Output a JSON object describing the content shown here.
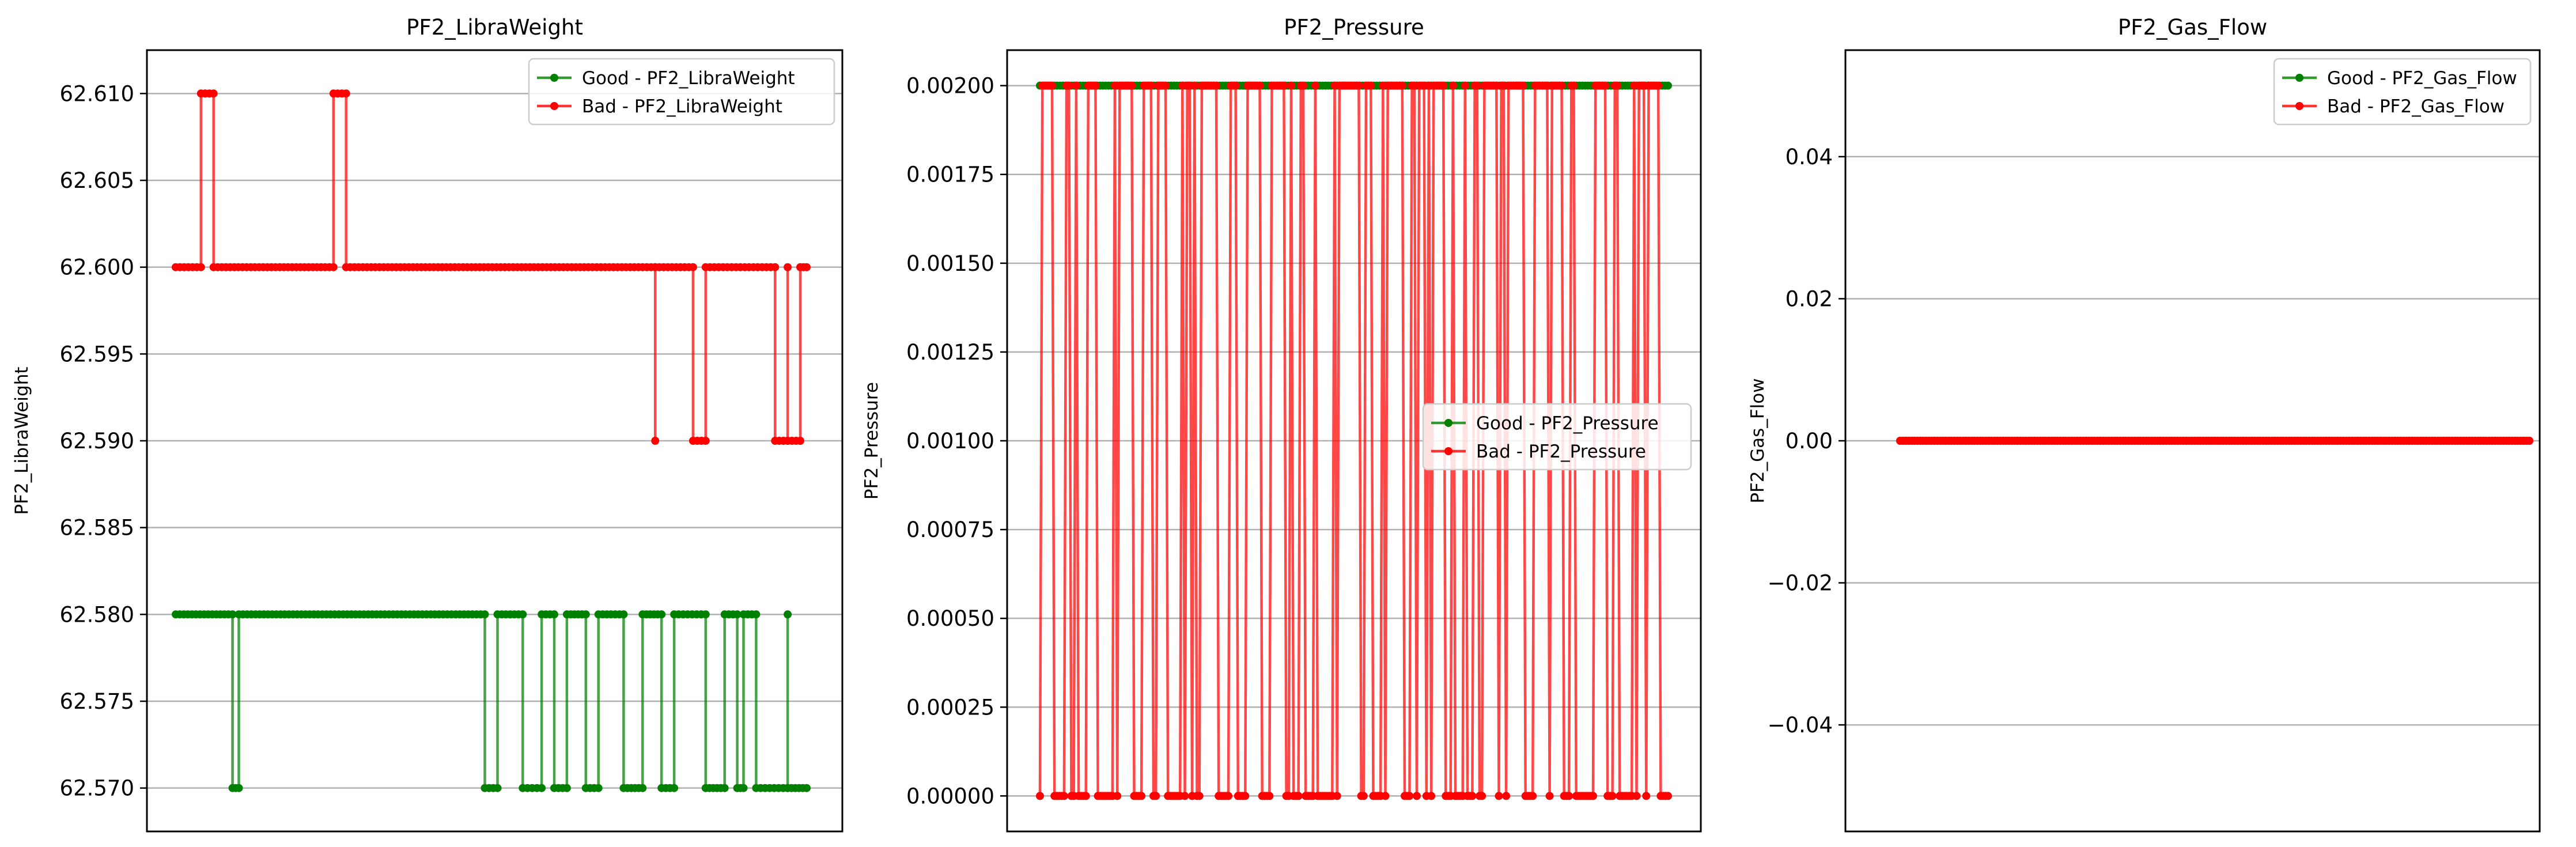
{
  "colors": {
    "good": "#008000",
    "bad": "#ff0000",
    "grid": "#b0b0b0",
    "axes": "#000000",
    "background": "#ffffff"
  },
  "chart_data": [
    {
      "type": "line",
      "title": "PF2_LibraWeight",
      "xlabel": "",
      "ylabel": "PF2_LibraWeight",
      "ylim": [
        62.5675,
        62.6125
      ],
      "y_ticks": [
        "62.570",
        "62.575",
        "62.580",
        "62.585",
        "62.590",
        "62.595",
        "62.600",
        "62.605",
        "62.610"
      ],
      "y_tick_values": [
        62.57,
        62.575,
        62.58,
        62.585,
        62.59,
        62.595,
        62.6,
        62.605,
        62.61
      ],
      "x_ticks_visible": false,
      "grid": "y",
      "legend_position": "top-right",
      "series": [
        {
          "name": "Good - PF2_LibraWeight",
          "color": "good",
          "segments": [
            [
              0.0,
              62.58
            ],
            [
              0.09,
              62.58
            ],
            [
              0.09,
              62.57
            ],
            [
              0.1,
              62.57
            ],
            [
              0.1,
              62.58
            ],
            [
              0.49,
              62.58
            ],
            [
              0.49,
              62.57
            ],
            [
              0.51,
              62.57
            ],
            [
              0.51,
              62.58
            ],
            [
              0.55,
              62.58
            ],
            [
              0.55,
              62.57
            ],
            [
              0.58,
              62.57
            ],
            [
              0.58,
              62.58
            ],
            [
              0.6,
              62.58
            ],
            [
              0.6,
              62.57
            ],
            [
              0.62,
              62.57
            ],
            [
              0.62,
              62.58
            ],
            [
              0.65,
              62.58
            ],
            [
              0.65,
              62.57
            ],
            [
              0.67,
              62.57
            ],
            [
              0.67,
              62.58
            ],
            [
              0.71,
              62.58
            ],
            [
              0.71,
              62.57
            ],
            [
              0.74,
              62.57
            ],
            [
              0.74,
              62.58
            ],
            [
              0.77,
              62.58
            ],
            [
              0.77,
              62.57
            ],
            [
              0.79,
              62.57
            ],
            [
              0.79,
              62.58
            ],
            [
              0.84,
              62.58
            ],
            [
              0.84,
              62.57
            ],
            [
              0.87,
              62.57
            ],
            [
              0.87,
              62.58
            ],
            [
              0.89,
              62.58
            ],
            [
              0.89,
              62.57
            ],
            [
              0.9,
              62.57
            ],
            [
              0.9,
              62.58
            ],
            [
              0.92,
              62.58
            ],
            [
              0.92,
              62.57
            ],
            [
              0.97,
              62.57
            ],
            [
              0.97,
              62.58
            ],
            [
              0.97,
              62.57
            ],
            [
              1.0,
              62.57
            ]
          ]
        },
        {
          "name": "Bad - PF2_LibraWeight",
          "color": "bad",
          "segments": [
            [
              0.0,
              62.6
            ],
            [
              0.04,
              62.6
            ],
            [
              0.04,
              62.61
            ],
            [
              0.06,
              62.61
            ],
            [
              0.06,
              62.6
            ],
            [
              0.25,
              62.6
            ],
            [
              0.25,
              62.61
            ],
            [
              0.27,
              62.61
            ],
            [
              0.27,
              62.6
            ],
            [
              0.76,
              62.6
            ],
            [
              0.76,
              62.59
            ],
            [
              0.76,
              62.6
            ],
            [
              0.82,
              62.6
            ],
            [
              0.82,
              62.59
            ],
            [
              0.84,
              62.59
            ],
            [
              0.84,
              62.6
            ],
            [
              0.95,
              62.6
            ],
            [
              0.95,
              62.59
            ],
            [
              0.97,
              62.59
            ],
            [
              0.97,
              62.6
            ],
            [
              0.97,
              62.59
            ],
            [
              0.99,
              62.59
            ],
            [
              0.99,
              62.6
            ],
            [
              1.0,
              62.6
            ]
          ]
        }
      ]
    },
    {
      "type": "line",
      "title": "PF2_Pressure",
      "xlabel": "",
      "ylabel": "PF2_Pressure",
      "ylim": [
        -0.0001,
        0.0021
      ],
      "y_ticks": [
        "0.00000",
        "0.00025",
        "0.00050",
        "0.00075",
        "0.00100",
        "0.00125",
        "0.00150",
        "0.00175",
        "0.00200"
      ],
      "y_tick_values": [
        0.0,
        0.00025,
        0.0005,
        0.00075,
        0.001,
        0.00125,
        0.0015,
        0.00175,
        0.002
      ],
      "x_ticks_visible": false,
      "grid": "y",
      "legend_position": "center-right",
      "series": [
        {
          "name": "Good - PF2_Pressure",
          "color": "good",
          "constant": 0.002
        },
        {
          "name": "Bad - PF2_Pressure",
          "color": "bad",
          "pattern": "alternating between 0.0 and 0.002",
          "levels": [
            0.0,
            0.002
          ]
        }
      ]
    },
    {
      "type": "line",
      "title": "PF2_Gas_Flow",
      "xlabel": "",
      "ylabel": "PF2_Gas_Flow",
      "ylim": [
        -0.055,
        0.055
      ],
      "y_ticks": [
        "−0.04",
        "−0.02",
        "0.00",
        "0.02",
        "0.04"
      ],
      "y_tick_values": [
        -0.04,
        -0.02,
        0.0,
        0.02,
        0.04
      ],
      "x_ticks_visible": false,
      "grid": "y",
      "legend_position": "top-right",
      "series": [
        {
          "name": "Good - PF2_Gas_Flow",
          "color": "good",
          "constant": 0.0
        },
        {
          "name": "Bad - PF2_Gas_Flow",
          "color": "bad",
          "constant": 0.0
        }
      ]
    }
  ]
}
